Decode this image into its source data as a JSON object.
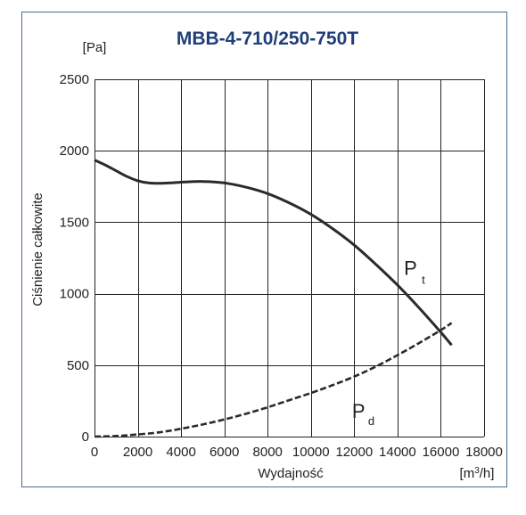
{
  "chart_data": {
    "type": "line",
    "title": "MBB-4-710/250-750T",
    "xlabel": "Wydajność",
    "ylabel": "Ciśnienie całkowite",
    "x_unit": "[m³/h]",
    "y_unit": "[Pa]",
    "xlim": [
      0,
      18000
    ],
    "ylim": [
      0,
      2500
    ],
    "x_ticks": [
      "0",
      "2000",
      "4000",
      "6000",
      "8000",
      "10000",
      "12000",
      "14000",
      "16000",
      "18000"
    ],
    "y_ticks": [
      "0",
      "500",
      "1000",
      "1500",
      "2000",
      "2500"
    ],
    "x_tick_values": [
      0,
      2000,
      4000,
      6000,
      8000,
      10000,
      12000,
      14000,
      16000,
      18000
    ],
    "y_tick_values": [
      0,
      500,
      1000,
      1500,
      2000,
      2500
    ],
    "grid": true,
    "legend": "inline labels",
    "series": [
      {
        "name": "Pt",
        "label_main": "P",
        "label_sub": "t",
        "style": "solid",
        "color": "#2b2b2b",
        "x": [
          0,
          500,
          1000,
          1500,
          2000,
          2500,
          3000,
          3500,
          4000,
          5000,
          6000,
          7000,
          8000,
          9000,
          10000,
          11000,
          12000,
          13000,
          14000,
          15000,
          16000,
          16500
        ],
        "y": [
          1935,
          1900,
          1860,
          1820,
          1790,
          1775,
          1772,
          1775,
          1780,
          1785,
          1775,
          1745,
          1700,
          1635,
          1555,
          1455,
          1340,
          1205,
          1060,
          900,
          730,
          640
        ]
      },
      {
        "name": "Pd",
        "label_main": "P",
        "label_sub": "d",
        "style": "dashed",
        "color": "#2b2b2b",
        "x": [
          0,
          1000,
          2000,
          3000,
          4000,
          5000,
          6000,
          7000,
          8000,
          9000,
          10000,
          11000,
          12000,
          13000,
          14000,
          15000,
          16000,
          16500
        ],
        "y": [
          0,
          4,
          15,
          30,
          55,
          85,
          120,
          160,
          205,
          255,
          305,
          360,
          420,
          490,
          570,
          655,
          745,
          795
        ]
      }
    ],
    "colors": {
      "title": "#1f3f7a",
      "frame": "#4a6c8f",
      "grid": "#222222",
      "curve": "#2b2b2b"
    }
  }
}
